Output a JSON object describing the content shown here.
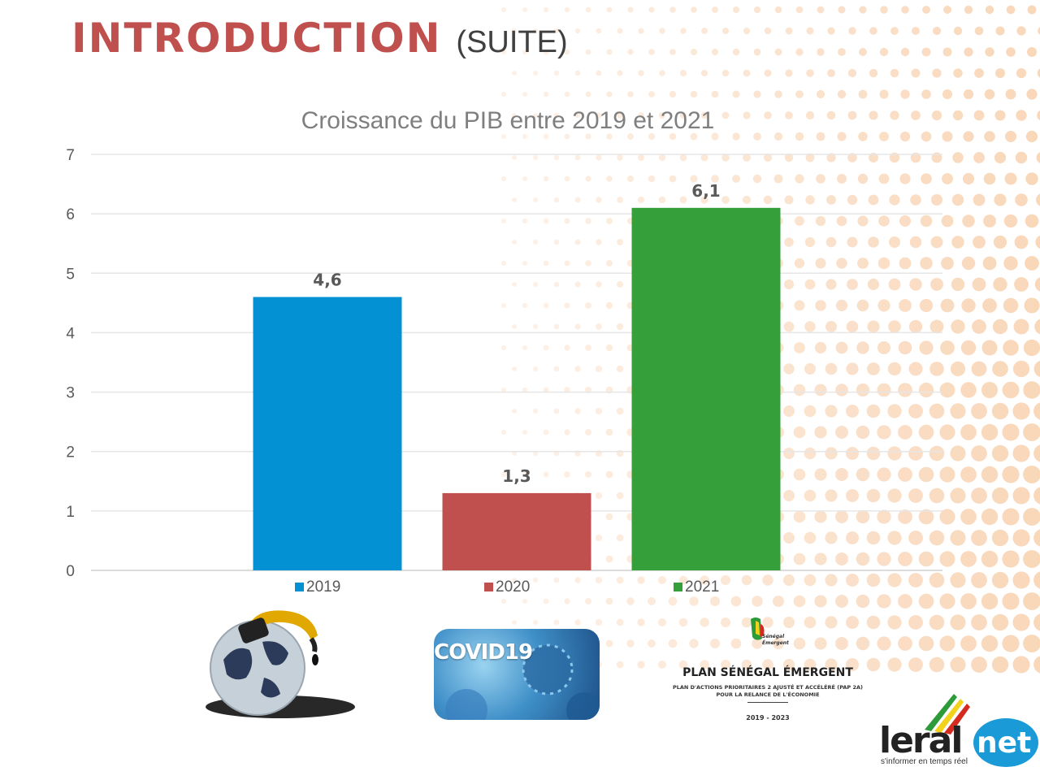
{
  "slide": {
    "heading": "INTRODUCTION",
    "heading_suffix": "(SUITE)",
    "colors": {
      "heading": "#c0504d"
    }
  },
  "chart_data": {
    "type": "bar",
    "title": "Croissance du PIB entre 2019 et 2021",
    "categories": [
      "2019",
      "2020",
      "2021"
    ],
    "values": [
      4.6,
      1.3,
      6.1
    ],
    "data_labels": [
      "4,6",
      "1,3",
      "6,1"
    ],
    "colors": [
      "#0391d3",
      "#c0504d",
      "#35a03a"
    ],
    "ylim": [
      0,
      7
    ],
    "yticks": [
      "0",
      "1",
      "2",
      "3",
      "4",
      "5",
      "6",
      "7"
    ],
    "grid": true,
    "legend": {
      "position": "bottom",
      "entries": [
        "2019",
        "2020",
        "2021"
      ]
    },
    "xlabel": "",
    "ylabel": ""
  },
  "images": {
    "oil": "oil-globe-icon",
    "covid": {
      "icon": "covid-image",
      "text": "COVID19"
    },
    "plan": {
      "title": "PLAN SÉNÉGAL ÉMERGENT",
      "description_line1": "PLAN D'ACTIONS PRIORITAIRES 2 AJUSTÉ ET ACCÉLÉRÉ (PAP 2A)",
      "description_line2": "POUR LA RELANCE DE L'ÉCONOMIE",
      "years": "2019 - 2023",
      "mark_line1": "Sénégal",
      "mark_line2": "Émergent"
    },
    "logo": {
      "name": "leral",
      "suffix": "net",
      "tagline": "s'informer en temps réel"
    }
  }
}
